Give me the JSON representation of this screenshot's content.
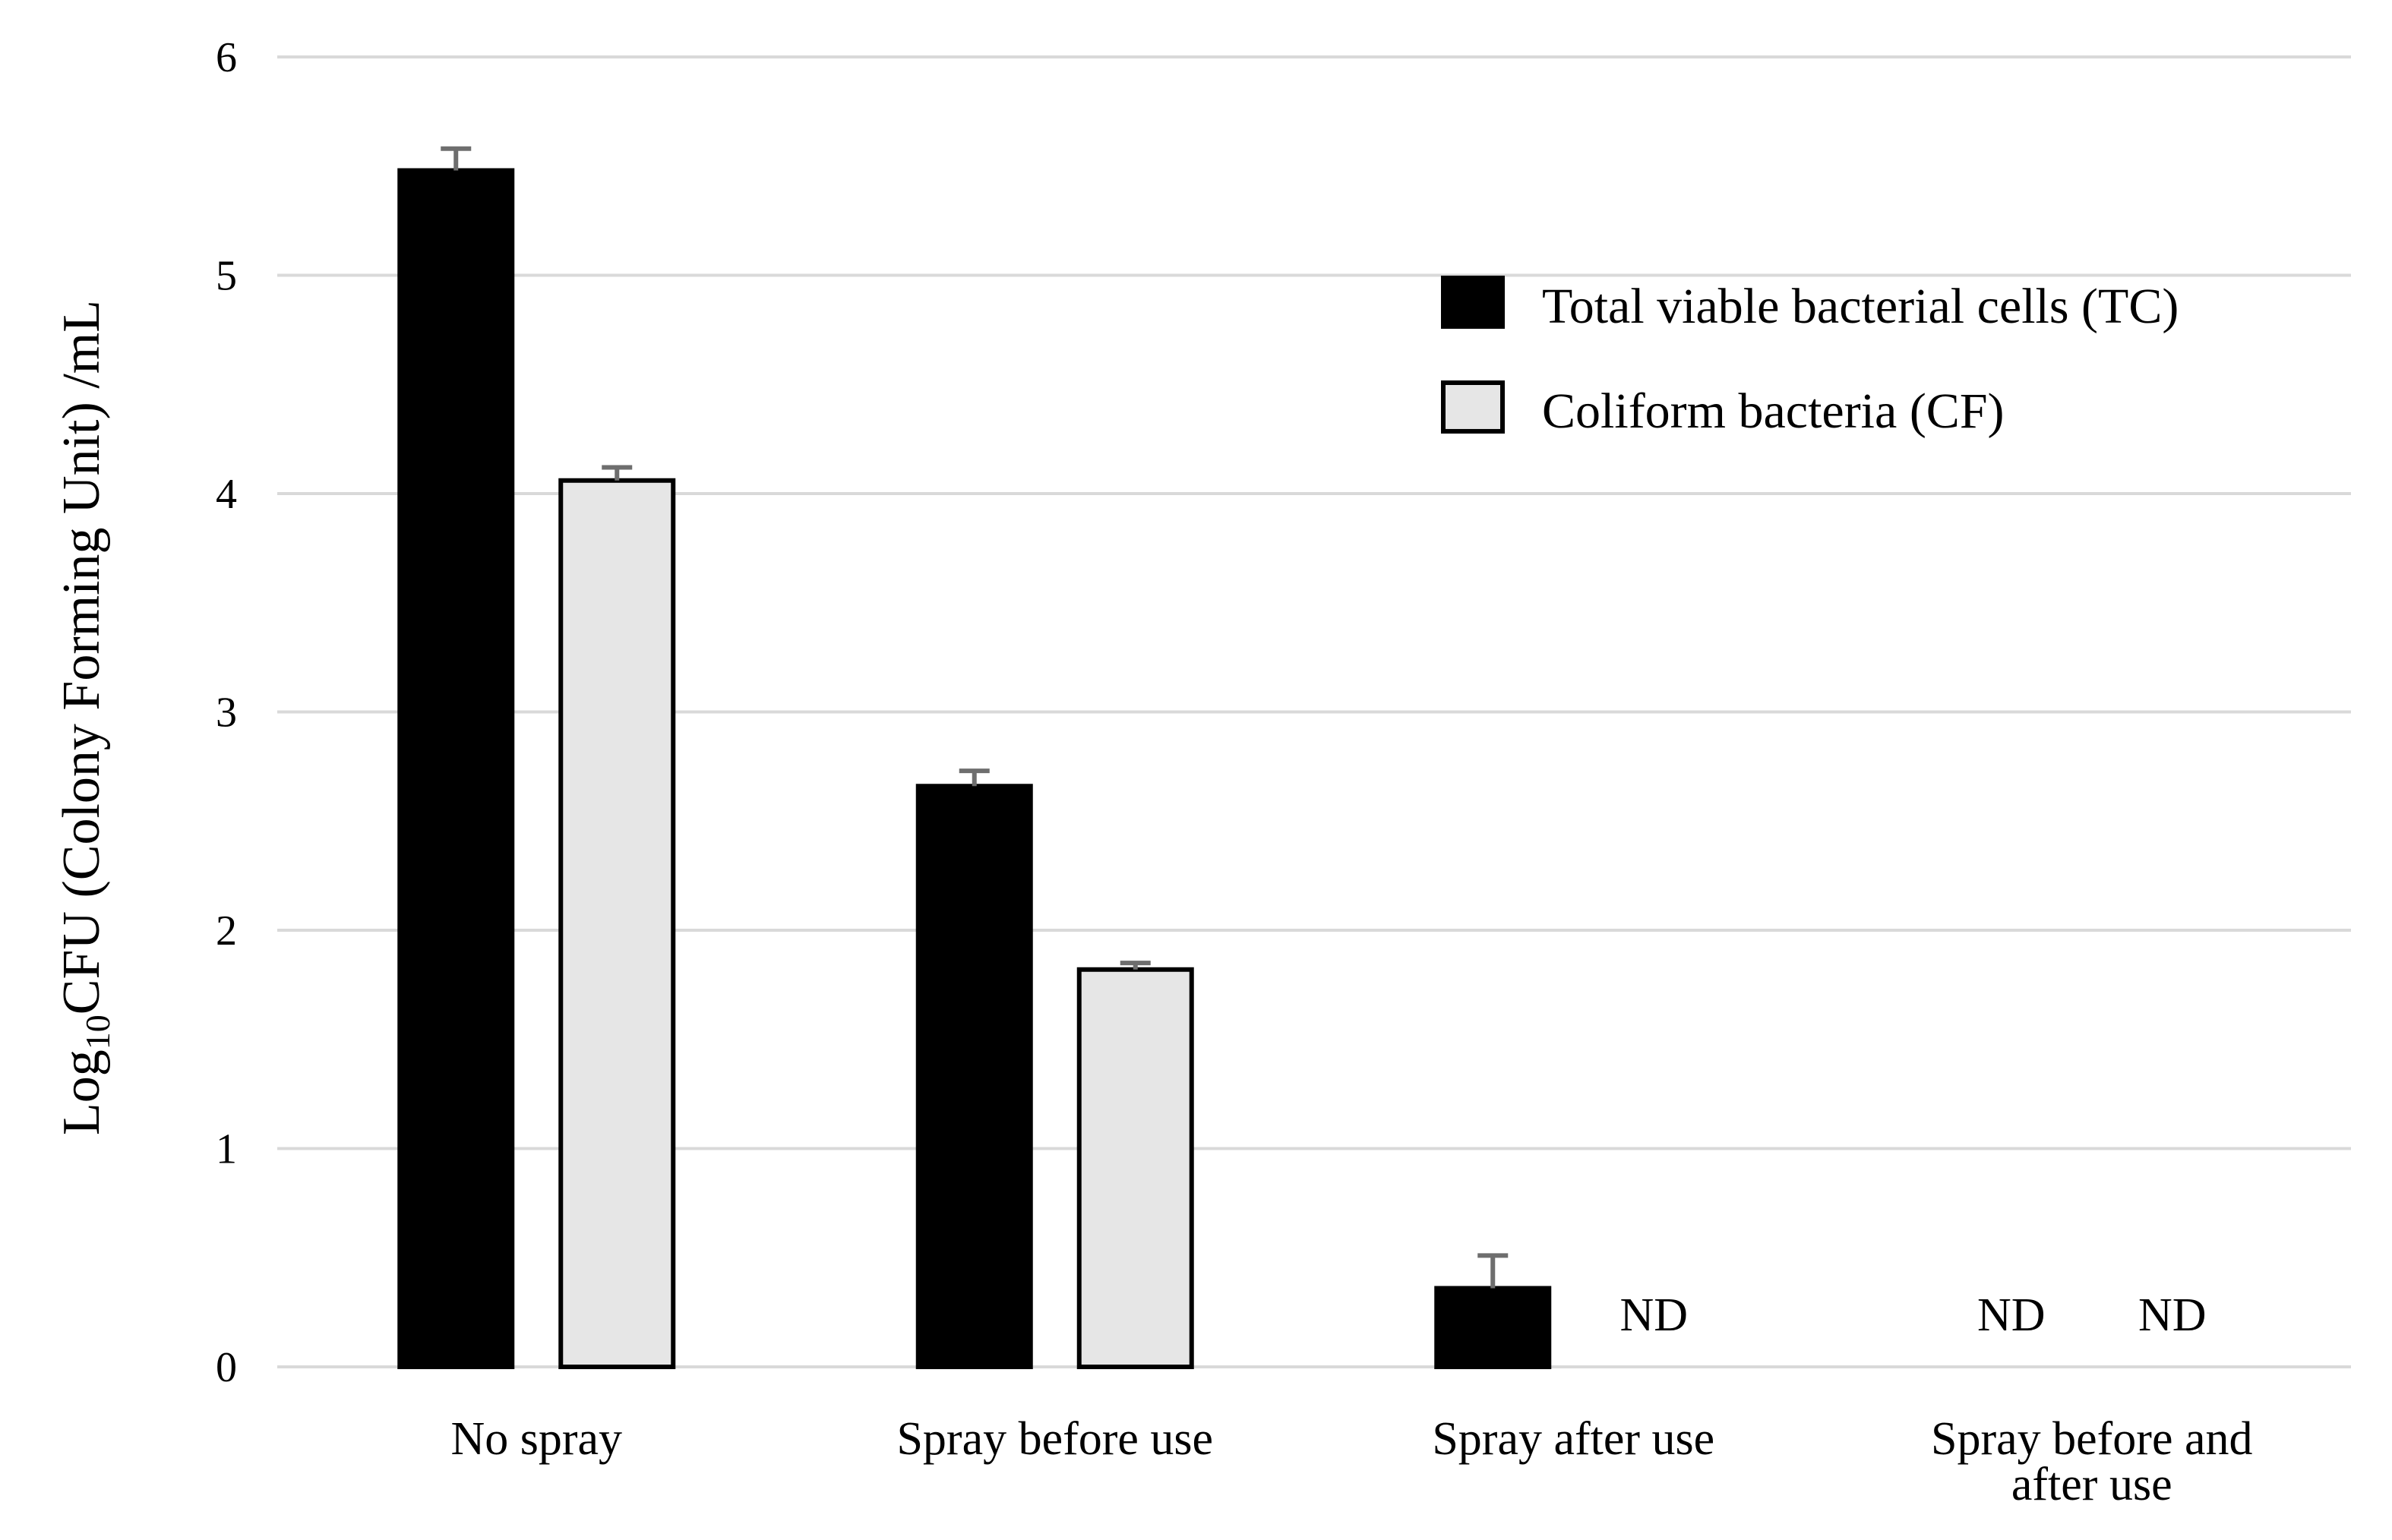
{
  "chart_data": {
    "type": "bar",
    "title": "",
    "xlabel": "",
    "ylabel": {
      "prefix": "Log",
      "subscript": "10",
      "rest": "CFU (Colony Forming Unit) /mL"
    },
    "ylim": [
      0,
      6
    ],
    "yticks": [
      "0",
      "1",
      "2",
      "3",
      "4",
      "5",
      "6"
    ],
    "grid": true,
    "legend_position": "top-right",
    "categories": [
      [
        "No spray"
      ],
      [
        "Spray before use"
      ],
      [
        "Spray after use"
      ],
      [
        "Spray before and",
        "after use"
      ]
    ],
    "not_detected_label": "ND",
    "series": [
      {
        "name": "Total viable bacterial cells (TC)",
        "color": "#000000",
        "values": [
          5.48,
          2.66,
          0.36,
          null
        ],
        "errors": [
          0.1,
          0.07,
          0.15,
          null
        ]
      },
      {
        "name": "Coliform bacteria (CF)",
        "color": "#e6e6e6",
        "values": [
          4.06,
          1.82,
          null,
          null
        ],
        "errors": [
          0.06,
          0.03,
          null,
          null
        ]
      }
    ]
  }
}
